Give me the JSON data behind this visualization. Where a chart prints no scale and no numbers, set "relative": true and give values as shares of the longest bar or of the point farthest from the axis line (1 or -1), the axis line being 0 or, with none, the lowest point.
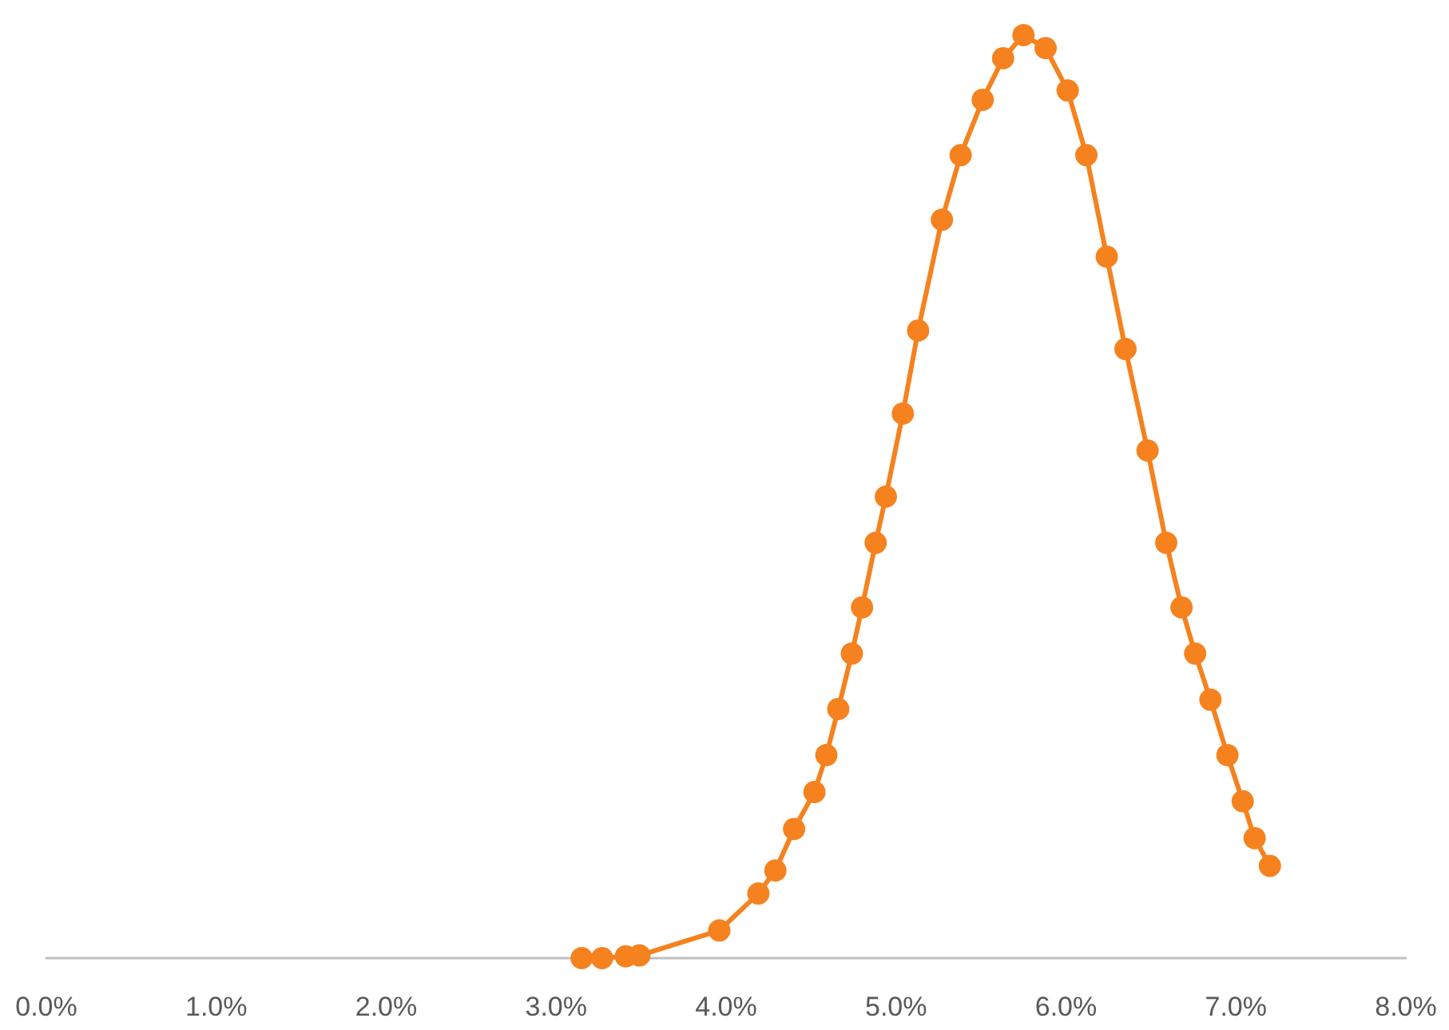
{
  "chart_data": {
    "type": "line",
    "relative": true,
    "marker": "circle",
    "line_style": "solid",
    "grid": false,
    "color": "#f5821f",
    "x": [
      3.15,
      3.27,
      3.41,
      3.49,
      3.96,
      4.19,
      4.29,
      4.4,
      4.52,
      4.59,
      4.66,
      4.74,
      4.8,
      4.88,
      4.94,
      5.04,
      5.13,
      5.27,
      5.38,
      5.51,
      5.63,
      5.75,
      5.88,
      6.01,
      6.12,
      6.24,
      6.35,
      6.48,
      6.59,
      6.68,
      6.76,
      6.85,
      6.95,
      7.04,
      7.11,
      7.2
    ],
    "values": [
      0,
      0,
      0.002,
      0.003,
      0.03,
      0.07,
      0.095,
      0.14,
      0.18,
      0.22,
      0.27,
      0.33,
      0.38,
      0.45,
      0.5,
      0.59,
      0.68,
      0.8,
      0.87,
      0.93,
      0.975,
      1,
      0.986,
      0.94,
      0.87,
      0.76,
      0.66,
      0.55,
      0.45,
      0.38,
      0.33,
      0.28,
      0.22,
      0.17,
      0.13,
      0.1
    ],
    "xlim": [
      0,
      8
    ],
    "xticks": [
      {
        "value": 0,
        "label": "0.0%"
      },
      {
        "value": 1,
        "label": "1.0%"
      },
      {
        "value": 2,
        "label": "2.0%"
      },
      {
        "value": 3,
        "label": "3.0%"
      },
      {
        "value": 4,
        "label": "4.0%"
      },
      {
        "value": 5,
        "label": "5.0%"
      },
      {
        "value": 6,
        "label": "6.0%"
      },
      {
        "value": 7,
        "label": "7.0%"
      },
      {
        "value": 8,
        "label": "8.0%"
      }
    ]
  }
}
